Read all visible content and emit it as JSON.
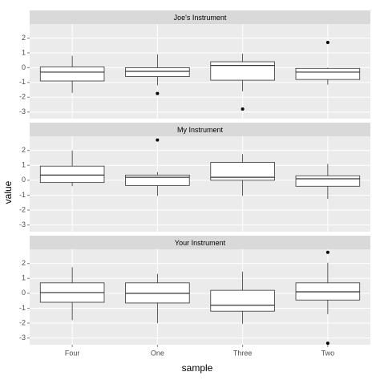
{
  "chart_data": {
    "type": "boxplot",
    "xlabel": "sample",
    "ylabel": "value",
    "categories": [
      "Four",
      "One",
      "Three",
      "Two"
    ],
    "ylim": [
      -3.45,
      2.95
    ],
    "yticks": [
      -3,
      -2,
      -1,
      0,
      1,
      2
    ],
    "grid": true,
    "box_fill": "#ffffff",
    "box_stroke": "#333333",
    "facets": [
      {
        "title": "Joe's Instrument",
        "boxes": [
          {
            "low": -1.7,
            "q1": -0.9,
            "median": -0.3,
            "q3": 0.05,
            "high": 0.8,
            "outliers": []
          },
          {
            "low": -1.2,
            "q1": -0.6,
            "median": -0.25,
            "q3": 0.0,
            "high": 0.9,
            "outliers": [
              -1.75
            ]
          },
          {
            "low": -1.6,
            "q1": -0.85,
            "median": 0.15,
            "q3": 0.4,
            "high": 0.95,
            "outliers": [
              -2.8
            ]
          },
          {
            "low": -1.15,
            "q1": -0.8,
            "median": -0.3,
            "q3": -0.05,
            "high": 0.0,
            "outliers": [
              1.7
            ]
          }
        ]
      },
      {
        "title": "My Instrument",
        "boxes": [
          {
            "low": -0.4,
            "q1": -0.15,
            "median": 0.35,
            "q3": 0.95,
            "high": 2.0,
            "outliers": []
          },
          {
            "low": -1.05,
            "q1": -0.35,
            "median": 0.2,
            "q3": 0.35,
            "high": 0.55,
            "outliers": [
              2.7
            ]
          },
          {
            "low": -1.05,
            "q1": 0.0,
            "median": 0.2,
            "q3": 1.2,
            "high": 1.75,
            "outliers": []
          },
          {
            "low": -1.25,
            "q1": -0.4,
            "median": 0.1,
            "q3": 0.3,
            "high": 1.1,
            "outliers": []
          }
        ]
      },
      {
        "title": "Your Instrument",
        "boxes": [
          {
            "low": -1.8,
            "q1": -0.6,
            "median": 0.05,
            "q3": 0.7,
            "high": 1.75,
            "outliers": []
          },
          {
            "low": -2.0,
            "q1": -0.65,
            "median": 0.0,
            "q3": 0.7,
            "high": 1.3,
            "outliers": []
          },
          {
            "low": -2.05,
            "q1": -1.2,
            "median": -0.8,
            "q3": 0.2,
            "high": 1.45,
            "outliers": []
          },
          {
            "low": -1.4,
            "q1": -0.45,
            "median": 0.1,
            "q3": 0.7,
            "high": 2.05,
            "outliers": [
              2.75,
              -3.35
            ]
          }
        ]
      }
    ]
  }
}
